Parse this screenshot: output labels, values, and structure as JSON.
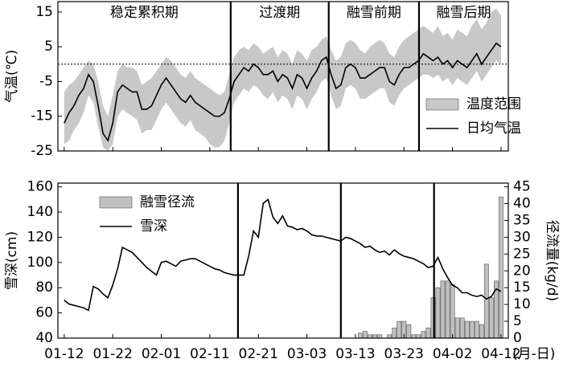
{
  "chart_data": [
    {
      "type": "line",
      "ylabel": "气温(℃)",
      "ylim": [
        -25,
        18
      ],
      "yticks": [
        15,
        5,
        -5,
        -15,
        -25
      ],
      "xlim": [
        -1.3,
        91.5
      ],
      "reference_line": 0,
      "dividers": [
        34.3,
        54.5,
        73.1
      ],
      "annotations": [
        "稳定累积期",
        "过渡期",
        "融雪前期",
        "融雪后期"
      ],
      "x": [
        0,
        1,
        2,
        3,
        4,
        5,
        6,
        7,
        8,
        9,
        10,
        11,
        12,
        13,
        14,
        15,
        16,
        17,
        18,
        19,
        20,
        21,
        22,
        23,
        24,
        25,
        26,
        27,
        28,
        29,
        30,
        31,
        32,
        33,
        34,
        35,
        36,
        37,
        38,
        39,
        40,
        41,
        42,
        43,
        44,
        45,
        46,
        47,
        48,
        49,
        50,
        51,
        52,
        53,
        54,
        55,
        56,
        57,
        58,
        59,
        60,
        61,
        62,
        63,
        64,
        65,
        66,
        67,
        68,
        69,
        70,
        71,
        72,
        73,
        74,
        75,
        76,
        77,
        78,
        79,
        80,
        81,
        82,
        83,
        84,
        85,
        86,
        87,
        88,
        89,
        90
      ],
      "series": [
        {
          "name": "温度范围",
          "type": "band",
          "color": "#c8c8c8",
          "low": [
            -23,
            -22,
            -19,
            -17,
            -14,
            -9,
            -11,
            -18,
            -24,
            -25,
            -23,
            -15,
            -13,
            -14,
            -15,
            -16,
            -20,
            -19,
            -19,
            -16,
            -13,
            -11,
            -13,
            -15,
            -17,
            -18,
            -16,
            -19,
            -20,
            -21,
            -23,
            -24,
            -24,
            -22,
            -17,
            -11,
            -9,
            -7,
            -8,
            -6,
            -7,
            -9,
            -10,
            -8,
            -11,
            -9,
            -10,
            -13,
            -9,
            -10,
            -13,
            -10,
            -8,
            -5,
            -4,
            -9,
            -13,
            -12,
            -7,
            -6,
            -7,
            -10,
            -10,
            -9,
            -8,
            -7,
            -7,
            -11,
            -12,
            -9,
            -7,
            -6,
            -5,
            -4,
            -3,
            -3,
            -4,
            -3,
            -5,
            -4,
            -6,
            -4,
            -5,
            -6,
            -4,
            -2,
            -5,
            -3,
            -1,
            1,
            0
          ],
          "high": [
            -8,
            -6,
            -5,
            -3,
            -1,
            1,
            0,
            -5,
            -12,
            -15,
            -9,
            -2,
            0,
            -1,
            -1,
            -2,
            -6,
            -5,
            -4,
            -2,
            0,
            2,
            1,
            -1,
            -3,
            -4,
            -2,
            -4,
            -5,
            -6,
            -7,
            -8,
            -9,
            -8,
            -3,
            2,
            4,
            5,
            4,
            6,
            5,
            3,
            4,
            5,
            2,
            4,
            3,
            0,
            4,
            3,
            1,
            4,
            5,
            7,
            8,
            4,
            1,
            2,
            6,
            7,
            6,
            4,
            3,
            5,
            6,
            7,
            6,
            3,
            2,
            5,
            7,
            8,
            9,
            10,
            11,
            10,
            9,
            11,
            8,
            9,
            7,
            10,
            9,
            8,
            11,
            13,
            10,
            12,
            15,
            16,
            14
          ]
        },
        {
          "name": "日均气温",
          "type": "line",
          "color": "#000000",
          "values": [
            -17,
            -14,
            -12,
            -9,
            -7,
            -3,
            -5,
            -12,
            -20,
            -22,
            -17,
            -8,
            -6,
            -7,
            -8,
            -8,
            -13,
            -13,
            -12,
            -9,
            -6,
            -4,
            -6,
            -8,
            -10,
            -11,
            -9,
            -11,
            -12,
            -13,
            -14,
            -15,
            -15,
            -14,
            -10,
            -5,
            -3,
            -1,
            -2,
            0,
            -1,
            -3,
            -3,
            -2,
            -5,
            -3,
            -4,
            -7,
            -3,
            -4,
            -7,
            -4,
            -2,
            1,
            2,
            -3,
            -7,
            -6,
            -1,
            0,
            -1,
            -4,
            -4,
            -3,
            -2,
            -1,
            -1,
            -5,
            -6,
            -3,
            -1,
            -1,
            0,
            1,
            3,
            2,
            1,
            2,
            0,
            1,
            -1,
            1,
            0,
            -1,
            1,
            3,
            0,
            2,
            4,
            6,
            5
          ]
        }
      ]
    },
    {
      "type": "bar",
      "ylabel": "雪深(cm)",
      "y2label": "径流量(kg/d)",
      "xlabel": "(月-日)",
      "ylim": [
        40,
        163
      ],
      "yticks": [
        40,
        60,
        80,
        100,
        120,
        140,
        160
      ],
      "y2lim": [
        0,
        46.1
      ],
      "y2ticks": [
        0,
        5,
        10,
        15,
        20,
        25,
        30,
        35,
        40,
        45
      ],
      "xlim": [
        -1.3,
        91.5
      ],
      "xticks": [
        {
          "value": 0,
          "label": "01-12"
        },
        {
          "value": 10,
          "label": "01-22"
        },
        {
          "value": 20,
          "label": "02-01"
        },
        {
          "value": 30,
          "label": "02-11"
        },
        {
          "value": 40,
          "label": "02-21"
        },
        {
          "value": 50,
          "label": "03-03"
        },
        {
          "value": 60,
          "label": "03-13"
        },
        {
          "value": 70,
          "label": "03-23"
        },
        {
          "value": 80,
          "label": "04-02"
        },
        {
          "value": 90,
          "label": "04-12"
        }
      ],
      "dividers": [
        35.8,
        57,
        76.2
      ],
      "x": [
        0,
        1,
        2,
        3,
        4,
        5,
        6,
        7,
        8,
        9,
        10,
        11,
        12,
        13,
        14,
        15,
        16,
        17,
        18,
        19,
        20,
        21,
        22,
        23,
        24,
        25,
        26,
        27,
        28,
        29,
        30,
        31,
        32,
        33,
        34,
        35,
        36,
        37,
        38,
        39,
        40,
        41,
        42,
        43,
        44,
        45,
        46,
        47,
        48,
        49,
        50,
        51,
        52,
        53,
        54,
        55,
        56,
        57,
        58,
        59,
        60,
        61,
        62,
        63,
        64,
        65,
        66,
        67,
        68,
        69,
        70,
        71,
        72,
        73,
        74,
        75,
        76,
        77,
        78,
        79,
        80,
        81,
        82,
        83,
        84,
        85,
        86,
        87,
        88,
        89,
        90
      ],
      "series": [
        {
          "name": "融雪径流",
          "type": "bar",
          "axis": "y2",
          "color": "#c0c0c0",
          "x": [
            61,
            62,
            63,
            64,
            65,
            67,
            68,
            69,
            70,
            71,
            72,
            73,
            74,
            75,
            76,
            77,
            78,
            79,
            80,
            81,
            82,
            83,
            84,
            85,
            86,
            87,
            88,
            89,
            90
          ],
          "values": [
            1.5,
            2,
            1,
            1,
            1,
            1,
            3,
            5,
            5,
            4,
            1,
            1,
            2,
            3,
            12,
            15,
            17,
            17,
            16,
            6,
            6,
            5,
            5,
            5,
            4,
            22,
            12,
            17,
            42
          ]
        },
        {
          "name": "雪深",
          "type": "line",
          "color": "#000000",
          "values": [
            70,
            67,
            66,
            65,
            64,
            62,
            81,
            79,
            75,
            72,
            82,
            95,
            112,
            110,
            108,
            104,
            100,
            96,
            93,
            90,
            100,
            101,
            99,
            97,
            101,
            102,
            103,
            103,
            101,
            99,
            97,
            95,
            94,
            92,
            91,
            90,
            90,
            90,
            105,
            125,
            120,
            147,
            150,
            136,
            131,
            137,
            129,
            128,
            126,
            127,
            125,
            122,
            121,
            121,
            120,
            119,
            118,
            117,
            120,
            119,
            117,
            115,
            112,
            113,
            110,
            108,
            109,
            106,
            110,
            107,
            105,
            104,
            103,
            101,
            99,
            96,
            97,
            104,
            95,
            88,
            82,
            80,
            76,
            76,
            74,
            73,
            74,
            71,
            73,
            79,
            77
          ]
        }
      ]
    }
  ]
}
